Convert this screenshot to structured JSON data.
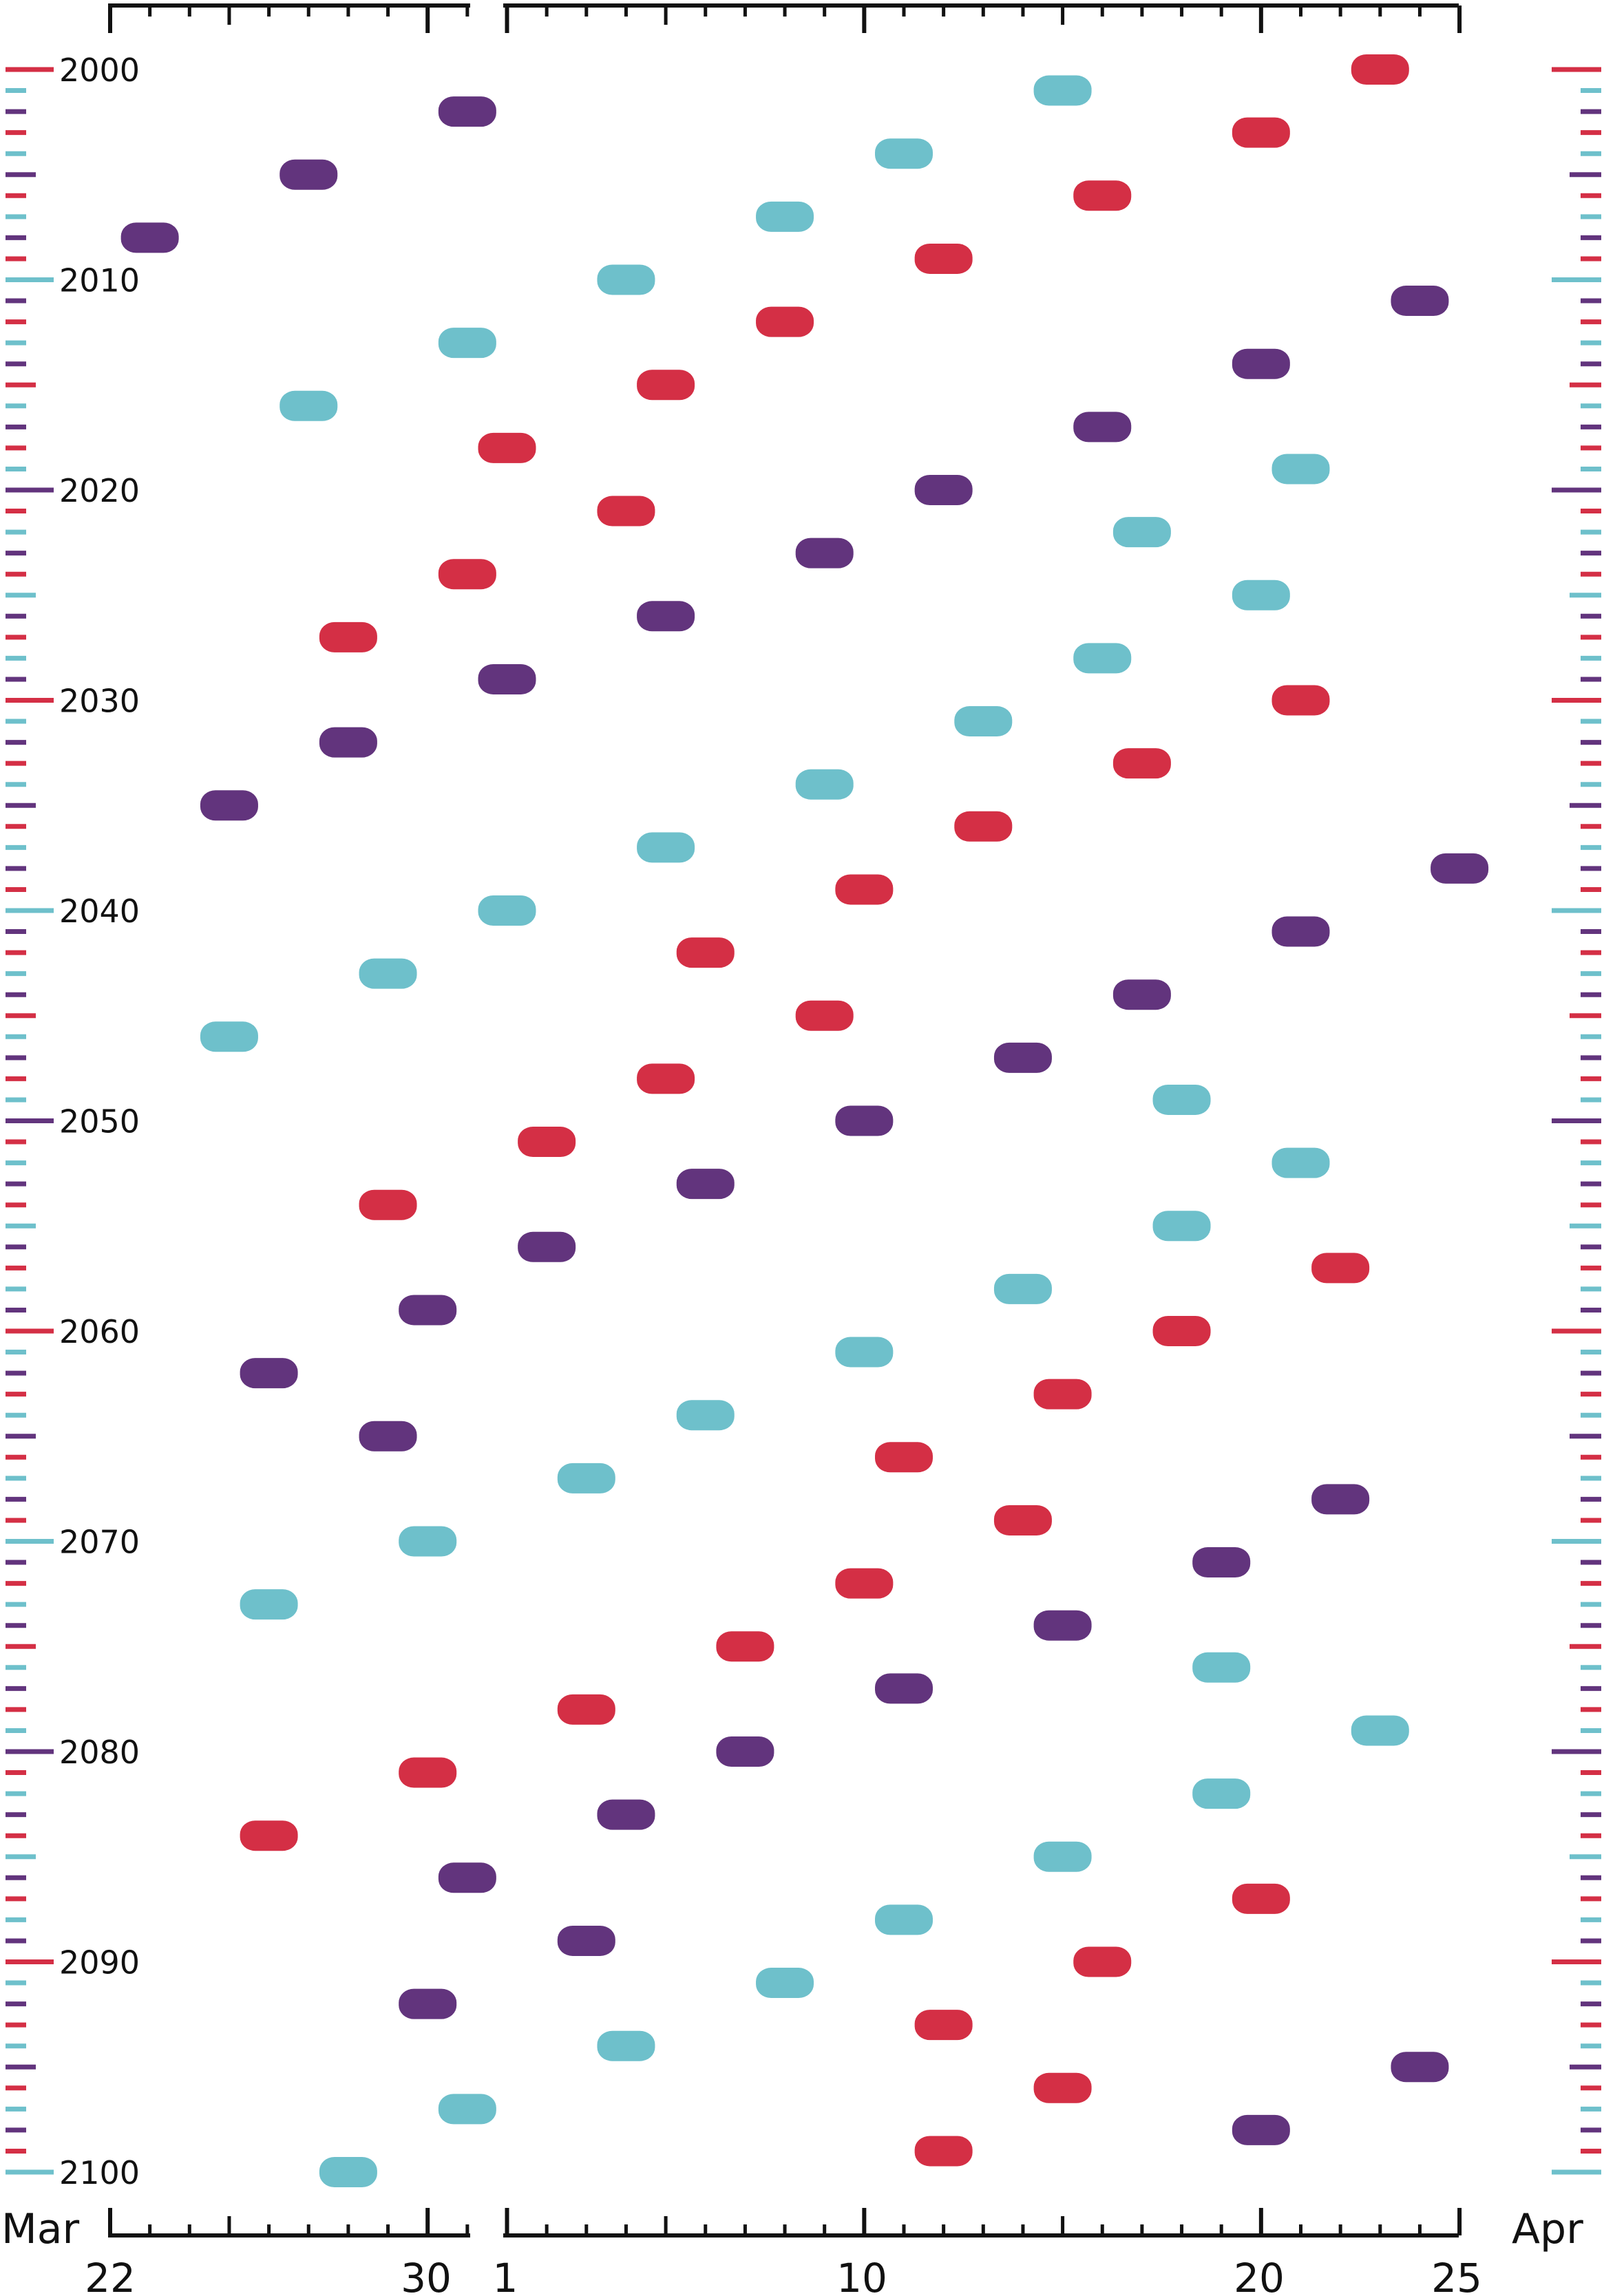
{
  "chart_data": {
    "type": "scatter",
    "title": "",
    "xlabel": "",
    "ylabel": "",
    "x_months": [
      "Mar",
      "Apr"
    ],
    "x_tick_labels": [
      "22",
      "30",
      "1",
      "10",
      "20",
      "25"
    ],
    "x_range": [
      "Mar 22",
      "Apr 25"
    ],
    "y_range": [
      2000,
      2100
    ],
    "y_tick_labels": [
      "2000",
      "2010",
      "2020",
      "2030",
      "2040",
      "2050",
      "2060",
      "2070",
      "2080",
      "2090",
      "2100"
    ],
    "grid": false,
    "legend": "none",
    "colors": {
      "cycle_a": "#d42f45",
      "cycle_b": "#6ec0cb",
      "cycle_c": "#62347d",
      "axis": "#111111"
    },
    "series": [
      {
        "color": "cycle_a",
        "points": [
          {
            "year": 2000,
            "date": "Apr 23"
          },
          {
            "year": 2003,
            "date": "Apr 20"
          },
          {
            "year": 2006,
            "date": "Apr 16"
          },
          {
            "year": 2009,
            "date": "Apr 12"
          },
          {
            "year": 2012,
            "date": "Apr 8"
          },
          {
            "year": 2015,
            "date": "Apr 5"
          },
          {
            "year": 2018,
            "date": "Apr 1"
          },
          {
            "year": 2021,
            "date": "Apr 4"
          },
          {
            "year": 2024,
            "date": "Mar 31"
          },
          {
            "year": 2027,
            "date": "Mar 28"
          },
          {
            "year": 2030,
            "date": "Apr 21"
          },
          {
            "year": 2033,
            "date": "Apr 17"
          },
          {
            "year": 2036,
            "date": "Apr 13"
          },
          {
            "year": 2039,
            "date": "Apr 10"
          },
          {
            "year": 2042,
            "date": "Apr 6"
          },
          {
            "year": 2045,
            "date": "Apr 9"
          },
          {
            "year": 2048,
            "date": "Apr 5"
          },
          {
            "year": 2051,
            "date": "Apr 2"
          },
          {
            "year": 2054,
            "date": "Mar 29"
          },
          {
            "year": 2057,
            "date": "Apr 22"
          },
          {
            "year": 2060,
            "date": "Apr 18"
          },
          {
            "year": 2063,
            "date": "Apr 15"
          },
          {
            "year": 2066,
            "date": "Apr 11"
          },
          {
            "year": 2069,
            "date": "Apr 14"
          },
          {
            "year": 2072,
            "date": "Apr 10"
          },
          {
            "year": 2075,
            "date": "Apr 7"
          },
          {
            "year": 2078,
            "date": "Apr 3"
          },
          {
            "year": 2081,
            "date": "Mar 30"
          },
          {
            "year": 2084,
            "date": "Mar 26"
          },
          {
            "year": 2087,
            "date": "Apr 20"
          },
          {
            "year": 2090,
            "date": "Apr 16"
          },
          {
            "year": 2093,
            "date": "Apr 12"
          },
          {
            "year": 2096,
            "date": "Apr 15"
          },
          {
            "year": 2099,
            "date": "Apr 12"
          }
        ]
      },
      {
        "color": "cycle_b",
        "points": [
          {
            "year": 2001,
            "date": "Apr 15"
          },
          {
            "year": 2004,
            "date": "Apr 11"
          },
          {
            "year": 2007,
            "date": "Apr 8"
          },
          {
            "year": 2010,
            "date": "Apr 4"
          },
          {
            "year": 2013,
            "date": "Mar 31"
          },
          {
            "year": 2016,
            "date": "Mar 27"
          },
          {
            "year": 2019,
            "date": "Apr 21"
          },
          {
            "year": 2022,
            "date": "Apr 17"
          },
          {
            "year": 2025,
            "date": "Apr 20"
          },
          {
            "year": 2028,
            "date": "Apr 16"
          },
          {
            "year": 2031,
            "date": "Apr 13"
          },
          {
            "year": 2034,
            "date": "Apr 9"
          },
          {
            "year": 2037,
            "date": "Apr 5"
          },
          {
            "year": 2040,
            "date": "Apr 1"
          },
          {
            "year": 2043,
            "date": "Mar 29"
          },
          {
            "year": 2046,
            "date": "Mar 25"
          },
          {
            "year": 2049,
            "date": "Apr 18"
          },
          {
            "year": 2052,
            "date": "Apr 21"
          },
          {
            "year": 2055,
            "date": "Apr 18"
          },
          {
            "year": 2058,
            "date": "Apr 14"
          },
          {
            "year": 2061,
            "date": "Apr 10"
          },
          {
            "year": 2064,
            "date": "Apr 6"
          },
          {
            "year": 2067,
            "date": "Apr 3"
          },
          {
            "year": 2070,
            "date": "Mar 30"
          },
          {
            "year": 2073,
            "date": "Mar 26"
          },
          {
            "year": 2076,
            "date": "Apr 19"
          },
          {
            "year": 2079,
            "date": "Apr 23"
          },
          {
            "year": 2082,
            "date": "Apr 19"
          },
          {
            "year": 2085,
            "date": "Apr 15"
          },
          {
            "year": 2088,
            "date": "Apr 11"
          },
          {
            "year": 2091,
            "date": "Apr 8"
          },
          {
            "year": 2094,
            "date": "Apr 4"
          },
          {
            "year": 2097,
            "date": "Mar 31"
          },
          {
            "year": 2100,
            "date": "Mar 28"
          }
        ]
      },
      {
        "color": "cycle_c",
        "points": [
          {
            "year": 2002,
            "date": "Mar 31"
          },
          {
            "year": 2005,
            "date": "Mar 27"
          },
          {
            "year": 2008,
            "date": "Mar 23"
          },
          {
            "year": 2011,
            "date": "Apr 24"
          },
          {
            "year": 2014,
            "date": "Apr 20"
          },
          {
            "year": 2017,
            "date": "Apr 16"
          },
          {
            "year": 2020,
            "date": "Apr 12"
          },
          {
            "year": 2023,
            "date": "Apr 9"
          },
          {
            "year": 2026,
            "date": "Apr 5"
          },
          {
            "year": 2029,
            "date": "Apr 1"
          },
          {
            "year": 2032,
            "date": "Mar 28"
          },
          {
            "year": 2035,
            "date": "Mar 25"
          },
          {
            "year": 2038,
            "date": "Apr 25"
          },
          {
            "year": 2041,
            "date": "Apr 21"
          },
          {
            "year": 2044,
            "date": "Apr 17"
          },
          {
            "year": 2047,
            "date": "Apr 14"
          },
          {
            "year": 2050,
            "date": "Apr 10"
          },
          {
            "year": 2053,
            "date": "Apr 6"
          },
          {
            "year": 2056,
            "date": "Apr 2"
          },
          {
            "year": 2059,
            "date": "Mar 30"
          },
          {
            "year": 2062,
            "date": "Mar 26"
          },
          {
            "year": 2065,
            "date": "Mar 29"
          },
          {
            "year": 2068,
            "date": "Apr 22"
          },
          {
            "year": 2071,
            "date": "Apr 19"
          },
          {
            "year": 2074,
            "date": "Apr 15"
          },
          {
            "year": 2077,
            "date": "Apr 11"
          },
          {
            "year": 2080,
            "date": "Apr 7"
          },
          {
            "year": 2083,
            "date": "Apr 4"
          },
          {
            "year": 2086,
            "date": "Mar 31"
          },
          {
            "year": 2089,
            "date": "Apr 3"
          },
          {
            "year": 2092,
            "date": "Mar 30"
          },
          {
            "year": 2095,
            "date": "Apr 24"
          },
          {
            "year": 2098,
            "date": "Apr 20"
          }
        ]
      }
    ]
  }
}
